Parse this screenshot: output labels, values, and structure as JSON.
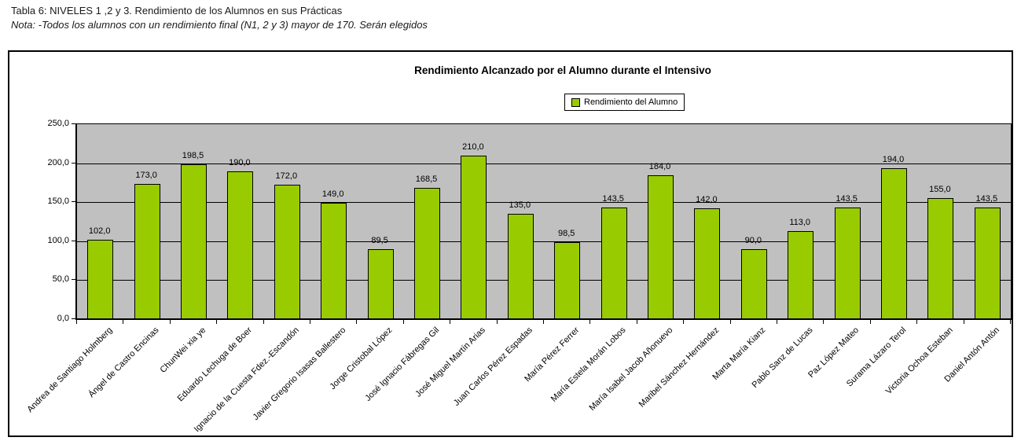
{
  "header": {
    "title_line": "Tabla 6: NIVELES 1 ,2 y 3. Rendimiento de los Alumnos en sus Prácticas",
    "note_line": "Nota: -Todos los alumnos con un rendimiento final (N1, 2 y 3) mayor de 170. Serán elegidos"
  },
  "chart": {
    "title": "Rendimiento Alcanzado por el Alumno durante el Intensivo",
    "legend_label": "Rendimiento del Alumno"
  },
  "colors": {
    "bar_fill": "#99CC00",
    "bar_border": "#000000",
    "plot_background": "#C0C0C0",
    "gridline": "#000000",
    "text": "#000000"
  },
  "chart_data": {
    "type": "bar",
    "title": "Rendimiento Alcanzado por el Alumno durante el Intensivo",
    "legend": [
      "Rendimiento del Alumno"
    ],
    "legend_position": "top-center",
    "grid": true,
    "ylim": [
      0,
      250
    ],
    "y_tick_values": [
      0,
      50,
      100,
      150,
      200,
      250
    ],
    "y_tick_labels": [
      "0,0",
      "50,0",
      "100,0",
      "150,0",
      "200,0",
      "250,0"
    ],
    "categories": [
      "Andrea de Santiago Holmberg",
      "Ángel de Castro Encinas",
      "ChunWei xia ye",
      "Eduardo Lechuga de Boer",
      "Ignacio de la Cuesta Fdez.-Escandón",
      "Javier Gregorio Isasas Ballestero",
      "Jorge Cristobal López",
      "José Ignacio Fábregas Gil",
      "José Miguel Martín Arias",
      "Juan Carlos Pérez Espadas",
      "María Pérez Ferrer",
      "María Estela Morán Lobos",
      "María Isabel Jacob Añonuevo",
      "Maribel Sánchez Hernández",
      "Marta María Kianz",
      "Pablo Sanz de Lucas",
      "Paz López Mateo",
      "Surama Lázaro Terol",
      "Victoria Ochoa Esteban",
      "Daniel Antón Antón"
    ],
    "values": [
      102,
      173,
      198.5,
      190,
      172,
      149,
      89.5,
      168.5,
      210,
      135,
      98.5,
      143.5,
      184,
      142,
      90,
      113,
      143.5,
      194,
      155,
      143.5
    ],
    "value_labels": [
      "102,0",
      "173,0",
      "198,5",
      "190,0",
      "172,0",
      "149,0",
      "89,5",
      "168,5",
      "210,0",
      "135,0",
      "98,5",
      "143,5",
      "184,0",
      "142,0",
      "90,0",
      "113,0",
      "143,5",
      "194,0",
      "155,0",
      "143,5"
    ]
  }
}
